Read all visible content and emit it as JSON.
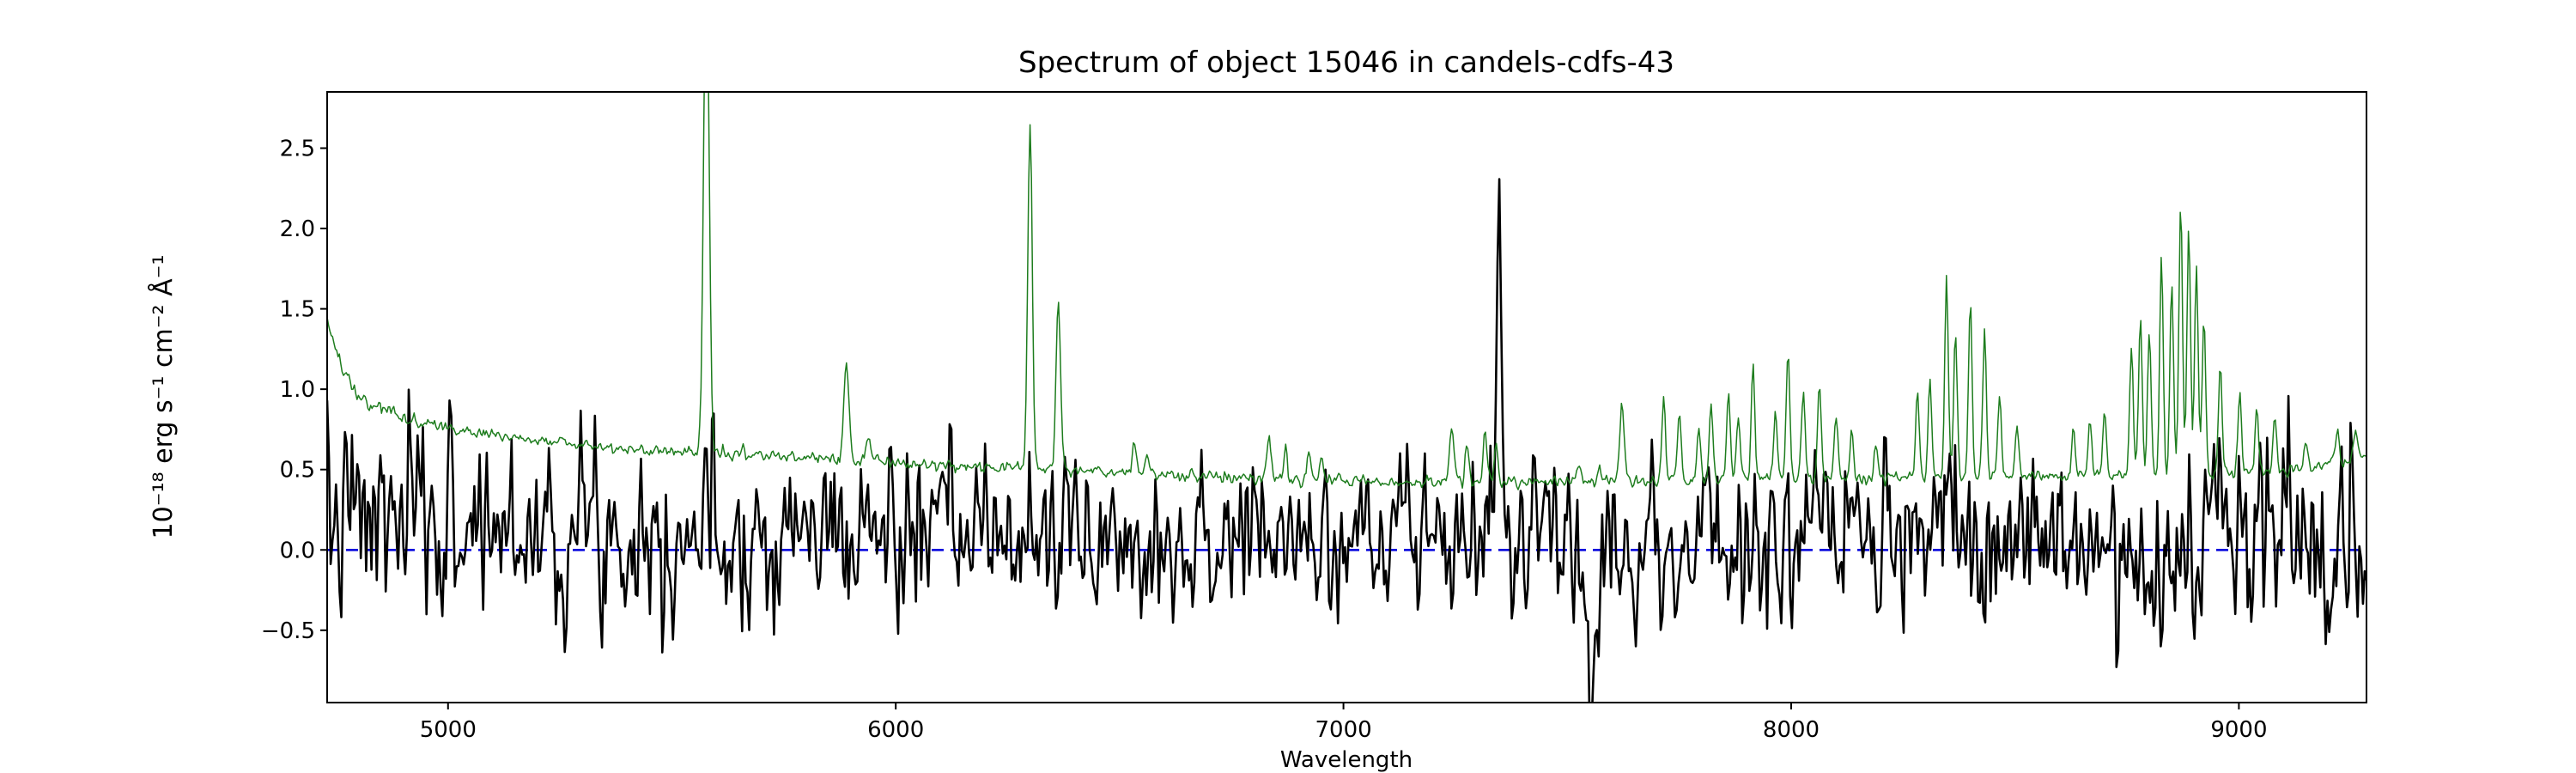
{
  "chart_data": {
    "type": "line",
    "title": "Spectrum of object 15046 in candels-cdfs-43",
    "xlabel": "Wavelength",
    "ylabel": "10⁻¹⁸ erg s⁻¹ cm⁻² Å⁻¹",
    "xlim": [
      4730,
      9285
    ],
    "ylim": [
      -0.95,
      2.85
    ],
    "xticks": [
      5000,
      6000,
      7000,
      8000,
      9000
    ],
    "yticks": [
      -0.5,
      0.0,
      0.5,
      1.0,
      1.5,
      2.0,
      2.5
    ],
    "grid": false,
    "legend": null,
    "noise_seed": 7,
    "series": [
      {
        "name": "zero-line",
        "color": "#0000dd",
        "linewidth": 2.6,
        "style": "dashed",
        "y": 0.0
      },
      {
        "name": "flux-spectrum",
        "color": "#000000",
        "linewidth": 2.6,
        "style": "solid",
        "samples": 1150,
        "baseline": [
          [
            4730,
            0.18
          ],
          [
            5000,
            0.16
          ],
          [
            5500,
            0.13
          ],
          [
            6000,
            0.1
          ],
          [
            6500,
            0.07
          ],
          [
            7000,
            0.05
          ],
          [
            7400,
            0.03
          ],
          [
            7800,
            0.03
          ],
          [
            8300,
            0.05
          ],
          [
            8800,
            0.05
          ],
          [
            9285,
            0.06
          ]
        ],
        "noise_sigma": [
          [
            4730,
            0.31
          ],
          [
            5200,
            0.3
          ],
          [
            5800,
            0.27
          ],
          [
            6400,
            0.24
          ],
          [
            7000,
            0.22
          ],
          [
            7600,
            0.26
          ],
          [
            8200,
            0.25
          ],
          [
            8800,
            0.29
          ],
          [
            9285,
            0.32
          ]
        ],
        "peaks": [
          [
            7128,
            0.82,
            5
          ],
          [
            7348,
            2.58,
            5
          ],
          [
            7560,
            -0.5,
            8
          ]
        ]
      },
      {
        "name": "error-spectrum",
        "color": "#1e7d1e",
        "linewidth": 1.5,
        "style": "solid",
        "samples": 1500,
        "baseline": [
          [
            4730,
            1.45
          ],
          [
            4760,
            1.15
          ],
          [
            4800,
            0.95
          ],
          [
            4900,
            0.82
          ],
          [
            5000,
            0.76
          ],
          [
            5200,
            0.68
          ],
          [
            5400,
            0.63
          ],
          [
            5600,
            0.6
          ],
          [
            5800,
            0.57
          ],
          [
            6000,
            0.54
          ],
          [
            6200,
            0.52
          ],
          [
            6400,
            0.5
          ],
          [
            6600,
            0.47
          ],
          [
            6800,
            0.45
          ],
          [
            7000,
            0.43
          ],
          [
            7200,
            0.42
          ],
          [
            7400,
            0.42
          ],
          [
            7600,
            0.43
          ],
          [
            7800,
            0.43
          ],
          [
            8000,
            0.44
          ],
          [
            8200,
            0.44
          ],
          [
            8400,
            0.45
          ],
          [
            8600,
            0.46
          ],
          [
            8800,
            0.46
          ],
          [
            9000,
            0.47
          ],
          [
            9150,
            0.5
          ],
          [
            9285,
            0.6
          ]
        ],
        "noise_sigma": [
          [
            4730,
            0.018
          ],
          [
            9285,
            0.018
          ]
        ],
        "peaks": [
          [
            5577,
            3.2,
            6
          ],
          [
            5890,
            0.6,
            6
          ],
          [
            5940,
            0.14,
            5
          ],
          [
            6300,
            2.15,
            5
          ],
          [
            6363,
            1.05,
            5
          ],
          [
            6533,
            0.18,
            5
          ],
          [
            6562,
            0.12,
            5
          ],
          [
            6834,
            0.28,
            5
          ],
          [
            6871,
            0.2,
            4
          ],
          [
            6923,
            0.18,
            4
          ],
          [
            6950,
            0.14,
            4
          ],
          [
            7242,
            0.3,
            5
          ],
          [
            7276,
            0.24,
            4
          ],
          [
            7316,
            0.35,
            4
          ],
          [
            7341,
            0.26,
            4
          ],
          [
            7524,
            0.14,
            4
          ],
          [
            7571,
            0.12,
            4
          ],
          [
            7622,
            0.45,
            5
          ],
          [
            7715,
            0.5,
            4
          ],
          [
            7750,
            0.45,
            4
          ],
          [
            7794,
            0.35,
            4
          ],
          [
            7821,
            0.5,
            4
          ],
          [
            7860,
            0.55,
            4
          ],
          [
            7882,
            0.4,
            4
          ],
          [
            7915,
            0.75,
            4
          ],
          [
            7965,
            0.45,
            4
          ],
          [
            7993,
            0.8,
            4
          ],
          [
            8027,
            0.55,
            4
          ],
          [
            8063,
            0.6,
            4
          ],
          [
            8100,
            0.4,
            4
          ],
          [
            8135,
            0.3,
            4
          ],
          [
            8190,
            0.2,
            4
          ],
          [
            8282,
            0.55,
            4
          ],
          [
            8310,
            0.65,
            4
          ],
          [
            8347,
            1.25,
            4
          ],
          [
            8367,
            0.9,
            4
          ],
          [
            8400,
            1.1,
            4
          ],
          [
            8432,
            0.9,
            4
          ],
          [
            8465,
            0.5,
            4
          ],
          [
            8505,
            0.35,
            4
          ],
          [
            8630,
            0.3,
            4
          ],
          [
            8667,
            0.35,
            4
          ],
          [
            8700,
            0.4,
            4
          ],
          [
            8760,
            0.8,
            4
          ],
          [
            8780,
            1.0,
            4
          ],
          [
            8800,
            0.9,
            4
          ],
          [
            8827,
            1.35,
            4
          ],
          [
            8850,
            1.2,
            4
          ],
          [
            8870,
            1.75,
            4
          ],
          [
            8888,
            1.55,
            4
          ],
          [
            8905,
            1.3,
            4
          ],
          [
            8922,
            1.0,
            4
          ],
          [
            8958,
            0.7,
            4
          ],
          [
            9002,
            0.5,
            4
          ],
          [
            9040,
            0.4,
            4
          ],
          [
            9080,
            0.35,
            4
          ],
          [
            9150,
            0.2,
            4
          ],
          [
            9220,
            0.22,
            4
          ],
          [
            9260,
            0.18,
            4
          ]
        ]
      }
    ]
  }
}
